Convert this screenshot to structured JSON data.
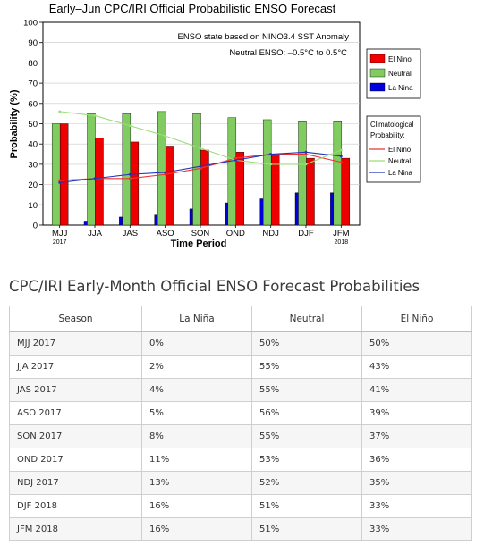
{
  "chart_data": {
    "type": "bar",
    "title": "Early–Jun CPC/IRI Official Probabilistic ENSO Forecast",
    "xlabel": "Time Period",
    "ylabel": "Probability (%)",
    "ylim": [
      0,
      100
    ],
    "yticks": [
      0,
      10,
      20,
      30,
      40,
      50,
      60,
      70,
      80,
      90,
      100
    ],
    "categories": [
      "MJJ",
      "JJA",
      "JAS",
      "ASO",
      "SON",
      "OND",
      "NDJ",
      "DJF",
      "JFM"
    ],
    "category_sublabels": [
      "2017",
      "",
      "",
      "",
      "",
      "",
      "",
      "",
      "2018"
    ],
    "annotation_line1": "ENSO state based on NINO3.4 SST Anomaly",
    "annotation_line2": "Neutral ENSO: –0.5°C to 0.5°C",
    "grid": true,
    "series": [
      {
        "name": "El Nino",
        "color": "#ee0000",
        "values": [
          50,
          43,
          41,
          39,
          37,
          36,
          35,
          33,
          33
        ]
      },
      {
        "name": "Neutral",
        "color": "#80cc60",
        "values": [
          50,
          55,
          55,
          56,
          55,
          53,
          52,
          51,
          51
        ]
      },
      {
        "name": "La Nina",
        "color": "#0000dd",
        "values": [
          0,
          2,
          4,
          5,
          8,
          11,
          13,
          16,
          16
        ]
      }
    ],
    "legend_placement": "right",
    "climatology_legend_title_1": "Climatological",
    "climatology_legend_title_2": "Probability:",
    "climatology": [
      {
        "name": "El Nino",
        "color": "#ee3333",
        "values": [
          22,
          23,
          23,
          25,
          28,
          33,
          35,
          35,
          31
        ]
      },
      {
        "name": "Neutral",
        "color": "#99dd77",
        "values": [
          56,
          54,
          49,
          44,
          38,
          32,
          30,
          30,
          37
        ]
      },
      {
        "name": "La Nina",
        "color": "#2233bb",
        "values": [
          21,
          23,
          25,
          26,
          29,
          32,
          35,
          36,
          34
        ]
      }
    ]
  },
  "table": {
    "title": "CPC/IRI Early-Month Official ENSO Forecast Probabilities",
    "headers": {
      "season": "Season",
      "la_nina": "La Niña",
      "neutral": "Neutral",
      "el_nino": "El Niño"
    },
    "rows": [
      {
        "season": "MJJ 2017",
        "la_nina": "0%",
        "neutral": "50%",
        "el_nino": "50%"
      },
      {
        "season": "JJA 2017",
        "la_nina": "2%",
        "neutral": "55%",
        "el_nino": "43%"
      },
      {
        "season": "JAS 2017",
        "la_nina": "4%",
        "neutral": "55%",
        "el_nino": "41%"
      },
      {
        "season": "ASO 2017",
        "la_nina": "5%",
        "neutral": "56%",
        "el_nino": "39%"
      },
      {
        "season": "SON 2017",
        "la_nina": "8%",
        "neutral": "55%",
        "el_nino": "37%"
      },
      {
        "season": "OND 2017",
        "la_nina": "11%",
        "neutral": "53%",
        "el_nino": "36%"
      },
      {
        "season": "NDJ 2017",
        "la_nina": "13%",
        "neutral": "52%",
        "el_nino": "35%"
      },
      {
        "season": "DJF 2018",
        "la_nina": "16%",
        "neutral": "51%",
        "el_nino": "33%"
      },
      {
        "season": "JFM 2018",
        "la_nina": "16%",
        "neutral": "51%",
        "el_nino": "33%"
      }
    ]
  }
}
